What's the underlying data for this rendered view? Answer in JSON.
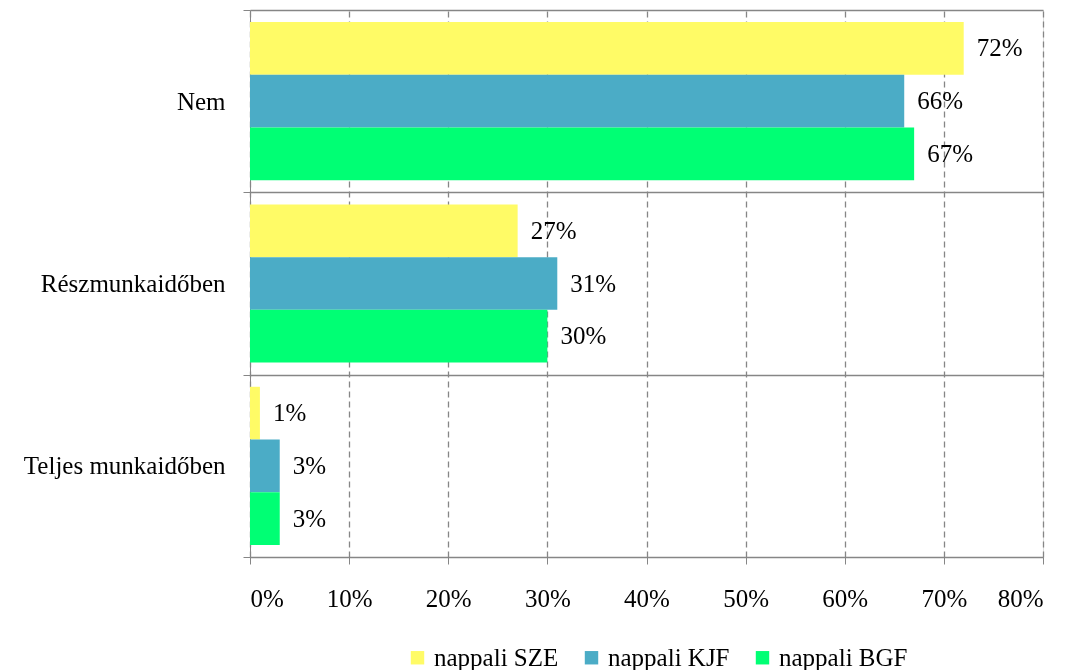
{
  "chart_data": {
    "type": "bar",
    "orientation": "horizontal",
    "categories": [
      "Nem",
      "Részmunkaidőben",
      "Teljes munkaidőben"
    ],
    "series": [
      {
        "name": "nappali SZE",
        "color": "#fffb66",
        "values": [
          72,
          27,
          1
        ],
        "value_labels": [
          "72%",
          "27%",
          "1%"
        ]
      },
      {
        "name": "nappali KJF",
        "color": "#4bacc6",
        "values": [
          66,
          31,
          3
        ],
        "value_labels": [
          "66%",
          "31%",
          "3%"
        ]
      },
      {
        "name": "nappali BGF",
        "color": "#00ff74",
        "values": [
          67,
          30,
          3
        ],
        "value_labels": [
          "67%",
          "30%",
          "3%"
        ]
      }
    ],
    "xlim": [
      0,
      80
    ],
    "xticks": [
      {
        "value": 0,
        "label": "0%"
      },
      {
        "value": 10,
        "label": "10%"
      },
      {
        "value": 20,
        "label": "20%"
      },
      {
        "value": 30,
        "label": "30%"
      },
      {
        "value": 40,
        "label": "40%"
      },
      {
        "value": 50,
        "label": "50%"
      },
      {
        "value": 60,
        "label": "60%"
      },
      {
        "value": 70,
        "label": "70%"
      },
      {
        "value": 80,
        "label": "80%"
      }
    ],
    "grid": true,
    "legend": "bottom"
  }
}
